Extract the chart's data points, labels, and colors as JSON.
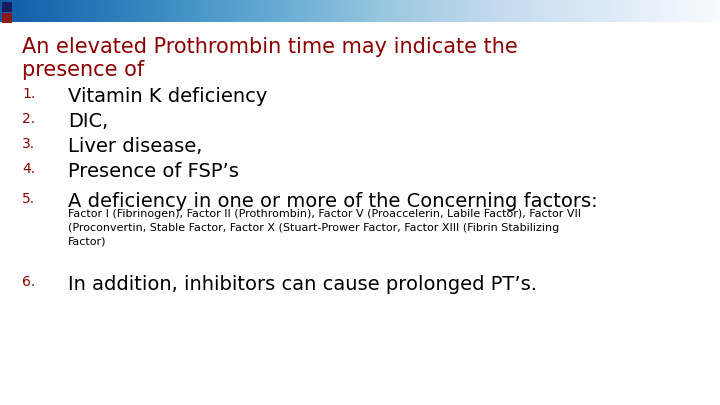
{
  "title_line1": "An elevated Prothrombin time may indicate the",
  "title_line2": "presence of",
  "title_color": "#8B0000",
  "background_color": "#FFFFFF",
  "items": [
    {
      "num": "1.",
      "text": "Vitamin K deficiency",
      "size": 14,
      "bold": false
    },
    {
      "num": "2.",
      "text": "DIC,",
      "size": 14,
      "bold": false
    },
    {
      "num": "3.",
      "text": "Liver disease,",
      "size": 14,
      "bold": false
    },
    {
      "num": "4.",
      "text": "Presence of FSP’s",
      "size": 14,
      "bold": false
    },
    {
      "num": "5.",
      "text": "A deficiency in one or more of the Concerning factors:",
      "size": 14,
      "bold": false
    }
  ],
  "sub_text": "Factor I (Fibrinogen), Factor II (Prothrombin), Factor V (Proaccelerin, Labile Factor), Factor VII\n(Proconvertin, Stable Factor, Factor X (Stuart-Prower Factor, Factor XIII (Fibrin Stabilizing\nFactor)",
  "item6_num": "6.",
  "item6_text": "In addition, inhibitors can cause prolonged PT’s.",
  "num_color": "#8B0000",
  "text_color": "#000000",
  "title_fontsize": 15,
  "list_fontsize": 14,
  "subtext_fontsize": 8,
  "num_fontsize": 10
}
